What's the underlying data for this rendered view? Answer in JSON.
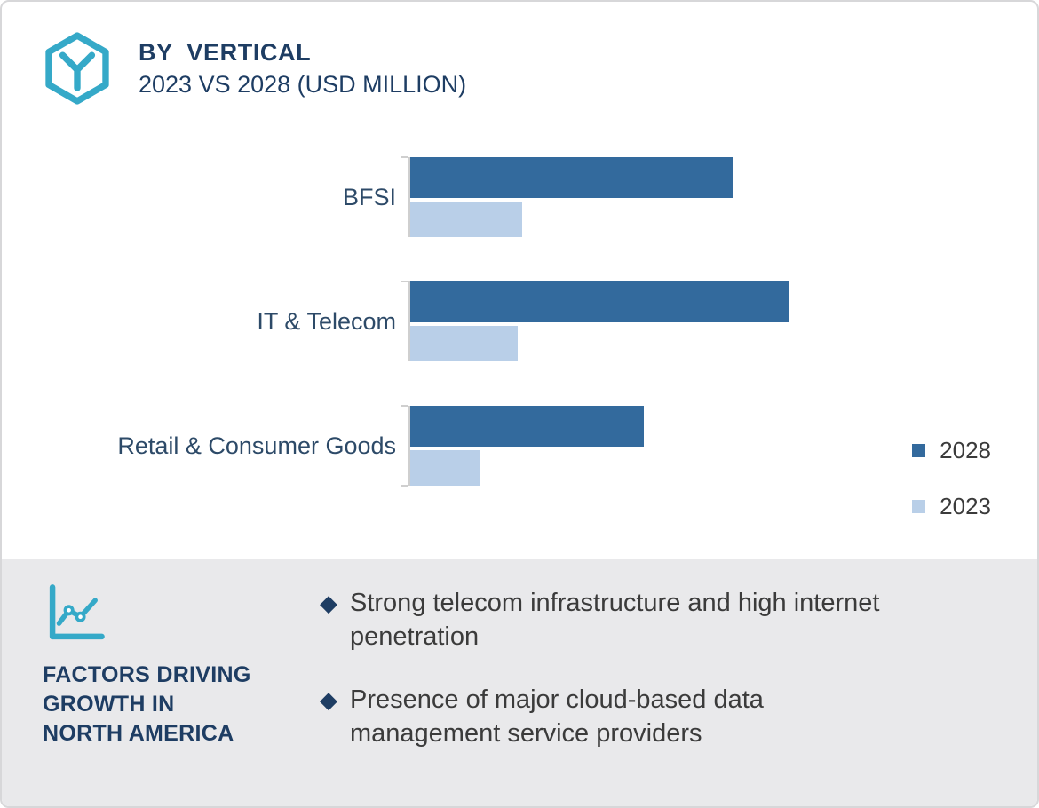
{
  "header": {
    "title": "BY  VERTICAL",
    "subtitle": "2023 VS 2028 (USD MILLION)"
  },
  "colors": {
    "accent_teal": "#35A9C8",
    "navy": "#1E3D63",
    "bar_2028": "#336A9D",
    "bar_2023": "#B9CFE8",
    "panel_bg": "#E9E9EB",
    "body_text": "#3B3B3B",
    "category_text": "#2D4A68",
    "axis_line": "#CFCFCF"
  },
  "chart_data": {
    "type": "bar",
    "orientation": "horizontal",
    "title": "BY VERTICAL",
    "subtitle": "2023 VS 2028 (USD MILLION)",
    "categories": [
      "BFSI",
      "IT & Telecom",
      "Retail & Consumer Goods"
    ],
    "series": [
      {
        "name": "2028",
        "color": "#336A9D",
        "values": [
          69,
          81,
          50
        ]
      },
      {
        "name": "2023",
        "color": "#B9CFE8",
        "values": [
          24,
          23,
          15
        ]
      }
    ],
    "axis_max": 100,
    "value_axis_visible": false,
    "note": "No numeric value axis shown in image; values estimated as percent of plot width",
    "legend_position": "right",
    "grid": false
  },
  "legend": {
    "items": [
      {
        "label": "2028",
        "color": "#336A9D"
      },
      {
        "label": "2023",
        "color": "#B9CFE8"
      }
    ]
  },
  "factors": {
    "heading_lines": [
      "FACTORS DRIVING",
      "GROWTH IN",
      "NORTH AMERICA"
    ],
    "bullet_marker": "◆",
    "bullets": [
      "Strong telecom infrastructure and high internet penetration",
      "Presence of major cloud-based data management service providers"
    ]
  }
}
